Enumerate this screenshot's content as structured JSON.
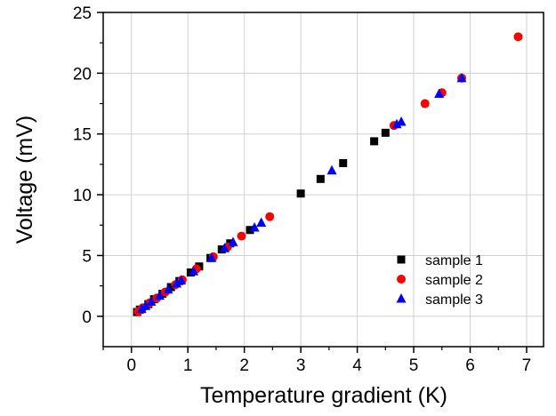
{
  "chart_data": {
    "type": "scatter",
    "title": "",
    "xlabel": "Temperature gradient (K)",
    "ylabel": "Voltage (mV)",
    "xlim": [
      -0.5,
      7.3
    ],
    "ylim": [
      -2.5,
      25
    ],
    "xticks": [
      "0",
      "1",
      "2",
      "3",
      "4",
      "5",
      "6",
      "7"
    ],
    "yticks": [
      "0",
      "5",
      "10",
      "15",
      "20",
      "25"
    ],
    "grid": true,
    "legend_position": "lower-right",
    "series": [
      {
        "name": "sample 1",
        "marker": "square",
        "color": "#000000",
        "points": [
          [
            0.1,
            0.35
          ],
          [
            0.15,
            0.55
          ],
          [
            0.3,
            1.0
          ],
          [
            0.4,
            1.4
          ],
          [
            0.55,
            1.85
          ],
          [
            0.7,
            2.4
          ],
          [
            0.85,
            2.9
          ],
          [
            1.05,
            3.6
          ],
          [
            1.2,
            4.1
          ],
          [
            1.4,
            4.8
          ],
          [
            1.6,
            5.5
          ],
          [
            1.75,
            6.0
          ],
          [
            2.1,
            7.1
          ],
          [
            3.0,
            10.1
          ],
          [
            3.35,
            11.3
          ],
          [
            3.75,
            12.6
          ],
          [
            4.3,
            14.4
          ],
          [
            4.5,
            15.1
          ]
        ]
      },
      {
        "name": "sample 2",
        "marker": "circle",
        "color": "#ff0000",
        "points": [
          [
            0.12,
            0.4
          ],
          [
            0.2,
            0.7
          ],
          [
            0.32,
            1.1
          ],
          [
            0.45,
            1.5
          ],
          [
            0.6,
            2.0
          ],
          [
            0.78,
            2.6
          ],
          [
            0.9,
            3.0
          ],
          [
            1.15,
            3.9
          ],
          [
            1.45,
            4.9
          ],
          [
            1.7,
            5.7
          ],
          [
            1.95,
            6.6
          ],
          [
            2.45,
            8.2
          ],
          [
            4.65,
            15.7
          ],
          [
            5.2,
            17.5
          ],
          [
            5.5,
            18.4
          ],
          [
            5.85,
            19.6
          ],
          [
            6.85,
            23.0
          ]
        ]
      },
      {
        "name": "sample 3",
        "marker": "triangle",
        "color": "#0000ff",
        "points": [
          [
            0.18,
            0.6
          ],
          [
            0.25,
            0.85
          ],
          [
            0.35,
            1.2
          ],
          [
            0.5,
            1.7
          ],
          [
            0.65,
            2.2
          ],
          [
            0.8,
            2.7
          ],
          [
            0.88,
            2.95
          ],
          [
            1.1,
            3.7
          ],
          [
            1.42,
            4.8
          ],
          [
            1.65,
            5.6
          ],
          [
            1.8,
            6.1
          ],
          [
            2.18,
            7.3
          ],
          [
            2.3,
            7.7
          ],
          [
            3.55,
            12.0
          ],
          [
            4.7,
            15.8
          ],
          [
            4.78,
            16.0
          ],
          [
            5.45,
            18.3
          ],
          [
            5.85,
            19.6
          ]
        ]
      }
    ]
  }
}
